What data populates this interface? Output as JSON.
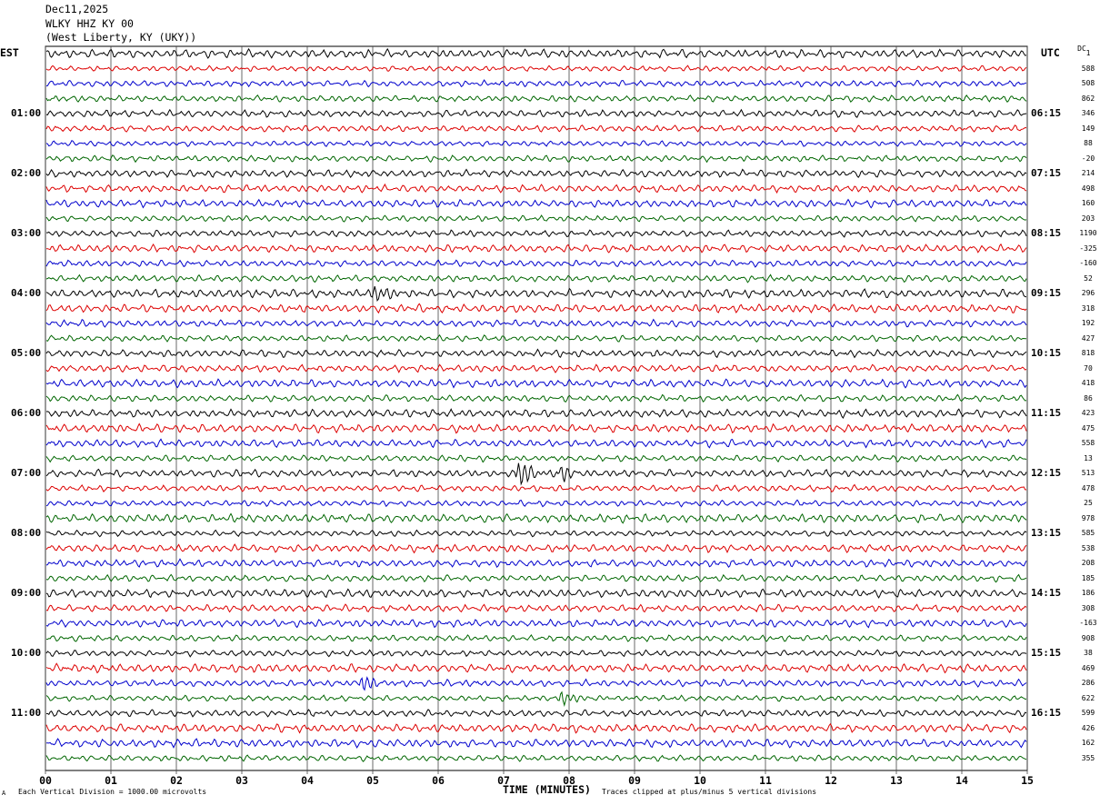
{
  "header": {
    "date": "Dec11,2025",
    "station": "WLKY HHZ KY 00",
    "location": "(West Liberty, KY (UKY))"
  },
  "left_tz": "EST",
  "right_tz": "UTC",
  "dc_label": "DC",
  "footer": {
    "scale_note": "Each Vertical Division = 1000.00 microvolts",
    "clip_note": "Traces clipped at plus/minus 5 vertical divisions",
    "corner_mark": "A"
  },
  "colors": {
    "trace_cycle": [
      "#000000",
      "#dd0000",
      "#0000cc",
      "#006600"
    ],
    "grid": "#000000"
  },
  "chart_data": {
    "type": "line",
    "xlabel": "TIME (MINUTES)",
    "xlim": [
      0,
      15
    ],
    "x_ticks": [
      "00",
      "01",
      "02",
      "03",
      "04",
      "05",
      "06",
      "07",
      "08",
      "09",
      "10",
      "11",
      "12",
      "13",
      "14",
      "15"
    ],
    "row_count": 48,
    "rows_per_hour": 4,
    "est_labels": [
      "01:00",
      "02:00",
      "03:00",
      "04:00",
      "05:00",
      "06:00",
      "07:00",
      "08:00",
      "09:00",
      "10:00",
      "11:00"
    ],
    "utc_labels": [
      "06:15",
      "07:15",
      "08:15",
      "09:15",
      "10:15",
      "11:15",
      "12:15",
      "13:15",
      "14:15",
      "15:15",
      "16:15"
    ],
    "dc_offsets": [
      "1",
      "588",
      "508",
      "862",
      "346",
      "149",
      "88",
      "-20",
      "214",
      "498",
      "160",
      "203",
      "1190",
      "-325",
      "-160",
      "52",
      "296",
      "318",
      "192",
      "427",
      "818",
      "70",
      "418",
      "86",
      "423",
      "475",
      "558",
      "13",
      "513",
      "478",
      "25",
      "978",
      "585",
      "538",
      "208",
      "185",
      "186",
      "308",
      "-163",
      "908",
      "38",
      "469",
      "286",
      "622",
      "599",
      "426",
      "162",
      "355"
    ],
    "events": [
      {
        "row": 16,
        "minute": 5.05,
        "amplitude": 1.8
      },
      {
        "row": 28,
        "minute": 7.25,
        "amplitude": 3.2
      },
      {
        "row": 28,
        "minute": 7.9,
        "amplitude": 2.0
      },
      {
        "row": 42,
        "minute": 4.85,
        "amplitude": 2.2
      },
      {
        "row": 43,
        "minute": 7.9,
        "amplitude": 1.8
      }
    ]
  }
}
